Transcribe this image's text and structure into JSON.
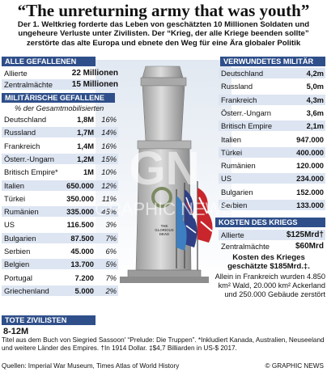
{
  "header": {
    "title": "“The unreturning army that was youth”",
    "subtitle": "Der 1. Weltkrieg forderte das Leben von geschätzten 10 Millionen Soldaten und ungeheure Verluste unter Zivilisten. Der “Krieg, der alle Kriege beenden sollte” zerstörte das alte Europa und ebnete den Weg für eine Ära globaler Politik"
  },
  "all_dead": {
    "heading": "ALLE GEFALLENEN",
    "rows": [
      {
        "label": "Allierte",
        "value": "22 Millionen"
      },
      {
        "label": "Zentralmächte",
        "value": "15 Millionen"
      }
    ]
  },
  "military_dead": {
    "heading": "MILITÄRISCHE GEFALLENE",
    "subheading": "% der Gesamtmobilisierten",
    "rows": [
      {
        "label": "Deutschland",
        "value": "1,8M",
        "pct": "16%"
      },
      {
        "label": "Russland",
        "value": "1,7M",
        "pct": "14%"
      },
      {
        "label": "Frankreich",
        "value": "1,4M",
        "pct": "16%"
      },
      {
        "label": "Österr.-Ungarn",
        "value": "1,2M",
        "pct": "15%"
      },
      {
        "label": "Britisch Empire*",
        "value": "1M",
        "pct": "10%"
      },
      {
        "label": "Italien",
        "value": "650.000",
        "pct": "12%"
      },
      {
        "label": "Türkei",
        "value": "350.000",
        "pct": "11%"
      },
      {
        "label": "Rumänien",
        "value": "335.000",
        "pct": "45%"
      },
      {
        "label": "US",
        "value": "116.500",
        "pct": "3%"
      },
      {
        "label": "Bulgarien",
        "value": "87.500",
        "pct": "7%"
      },
      {
        "label": "Serbien",
        "value": "45.000",
        "pct": "6%"
      },
      {
        "label": "Belgien",
        "value": "13.700",
        "pct": "5%"
      },
      {
        "label": "Portugal",
        "value": "7.200",
        "pct": "7%"
      },
      {
        "label": "Griechenland",
        "value": "5.000",
        "pct": "2%"
      }
    ]
  },
  "civilians": {
    "heading": "TOTE ZIVILISTEN",
    "value": "8-12M"
  },
  "wounded": {
    "heading": "VERWUNDETES MILITÄR",
    "rows": [
      {
        "label": "Deutschland",
        "value": "4,2m"
      },
      {
        "label": "Russland",
        "value": "5,0m"
      },
      {
        "label": "Frankreich",
        "value": "4,3m"
      },
      {
        "label": "Österr.-Ungarn",
        "value": "3,6m"
      },
      {
        "label": "Britisch Empire",
        "value": "2,1m"
      },
      {
        "label": "Italien",
        "value": "947.000"
      },
      {
        "label": "Türkei",
        "value": "400.000"
      },
      {
        "label": "Rumänien",
        "value": "120.000"
      },
      {
        "label": "US",
        "value": "234.000"
      },
      {
        "label": "Bulgarien",
        "value": "152.000"
      },
      {
        "label": "Serbien",
        "value": "133.000"
      }
    ]
  },
  "war_cost": {
    "heading": "KOSTEN DES KRIEGS",
    "rows": [
      {
        "label": "Allierte",
        "value": "$125Mrd†"
      },
      {
        "label": "Zentralmächte",
        "value": "$60Mrd"
      }
    ],
    "estimate_text": "Kosten des Krieges geschätzte $185Mrd.‡.",
    "note": "Allein in Frankreich wurden 4.850 km² Wald, 20.000 km² Ackerland und 250.000 Gebäude zerstört"
  },
  "monument": {
    "inscription": "THE GLORIOUS DEAD",
    "icon": "cenotaph-memorial-illustration"
  },
  "watermark": "GRAPHIC NEWS",
  "footer": {
    "footnote": "Titel aus dem Buch von Siegried Sassoon' “Prelude: Die Truppen”. *Inkludiert Kanada, Australien, Neuseeland und weitere Länder des Empires. †In 1914 Dollar. ‡$4,7 Billiarden in US-$ 2017.",
    "sources": "Quellen: Imperial War Museum, Times Atlas of World History",
    "credit": "© GRAPHIC NEWS"
  },
  "colors": {
    "header_bar": "#2f4f8a",
    "row_shade": "#dde5f2",
    "monument_stone": "#bdbdbd"
  }
}
